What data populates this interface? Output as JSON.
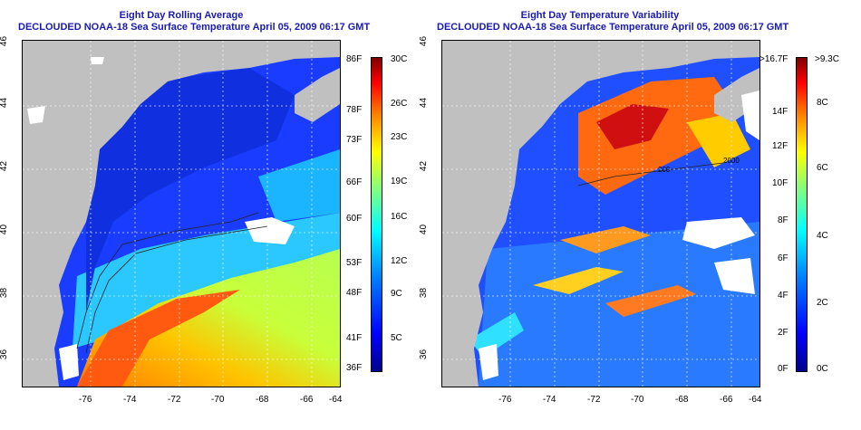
{
  "left_panel": {
    "title_line1": "Eight Day Rolling Average",
    "title_line2": "DECLOUDED NOAA-18 Sea Surface Temperature April 05, 2009 06:17 GMT",
    "colorbar": {
      "fahrenheit": [
        "86F",
        "78F",
        "73F",
        "66F",
        "60F",
        "53F",
        "48F",
        "41F",
        "36F"
      ],
      "celsius": [
        "30C",
        "26C",
        "23C",
        "19C",
        "16C",
        "12C",
        "9C",
        "5C"
      ]
    }
  },
  "right_panel": {
    "title_line1": "Eight Day Temperature Variability",
    "title_line2": "DECLOUDED NOAA-18 Sea Surface Temperature April 05, 2009 06:17 GMT",
    "colorbar": {
      "fahrenheit": [
        ">16.7F",
        "14F",
        "12F",
        "10F",
        "8F",
        "6F",
        "4F",
        "2F",
        "0F"
      ],
      "celsius": [
        ">9.3C",
        "8C",
        "6C",
        "4C",
        "2C",
        "0C"
      ]
    }
  },
  "axes": {
    "longitude_ticks": [
      "-76",
      "-74",
      "-72",
      "-70",
      "-68",
      "-66",
      "-64"
    ],
    "latitude_ticks": [
      "36",
      "38",
      "40",
      "42",
      "44",
      "46"
    ]
  },
  "contour_labels": [
    "200",
    "2000"
  ],
  "colors": {
    "title": "#1a1ab0",
    "land": "#c0c0c0",
    "cloud": "#ffffff",
    "jet_dark_blue": "#00008f",
    "jet_red": "#800000"
  }
}
